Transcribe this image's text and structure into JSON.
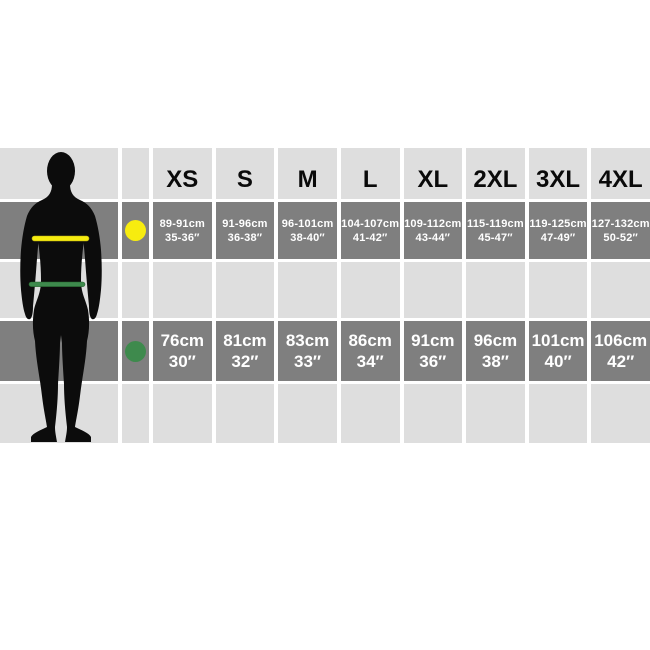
{
  "chart_data": {
    "type": "table",
    "columns": [
      "XS",
      "S",
      "M",
      "L",
      "XL",
      "2XL",
      "3XL",
      "4XL"
    ],
    "rows": [
      {
        "measure": "chest",
        "marker_color": "#f7ec0f",
        "cells": [
          {
            "cm": "89-91cm",
            "in": "35-36″"
          },
          {
            "cm": "91-96cm",
            "in": "36-38″"
          },
          {
            "cm": "96-101cm",
            "in": "38-40″"
          },
          {
            "cm": "104-107cm",
            "in": "41-42″"
          },
          {
            "cm": "109-112cm",
            "in": "43-44″"
          },
          {
            "cm": "115-119cm",
            "in": "45-47″"
          },
          {
            "cm": "119-125cm",
            "in": "47-49″"
          },
          {
            "cm": "127-132cm",
            "in": "50-52″"
          }
        ]
      },
      {
        "measure": "waist",
        "marker_color": "#3e8a4d",
        "cells": [
          {
            "cm": "76cm",
            "in": "30″"
          },
          {
            "cm": "81cm",
            "in": "32″"
          },
          {
            "cm": "83cm",
            "in": "33″"
          },
          {
            "cm": "86cm",
            "in": "34″"
          },
          {
            "cm": "91cm",
            "in": "36″"
          },
          {
            "cm": "96cm",
            "in": "38″"
          },
          {
            "cm": "101cm",
            "in": "40″"
          },
          {
            "cm": "106cm",
            "in": "42″"
          }
        ]
      }
    ]
  },
  "figure": {
    "icon": "male-body-silhouette",
    "silhouette_color": "#0c0c0c",
    "chest_line_color": "#f7ec0f",
    "waist_line_color": "#3e8a4d"
  },
  "colors": {
    "cell_dark": "#7f7f7f",
    "cell_light": "#dedede",
    "text_on_dark": "#ffffff",
    "text_on_light": "#0a0a0a",
    "background": "#ffffff"
  }
}
